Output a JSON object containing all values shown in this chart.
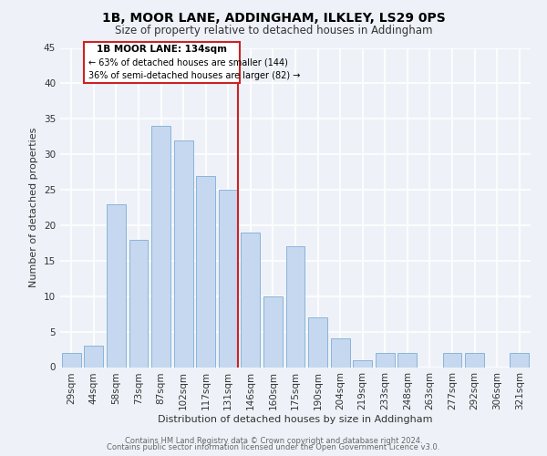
{
  "title": "1B, MOOR LANE, ADDINGHAM, ILKLEY, LS29 0PS",
  "subtitle": "Size of property relative to detached houses in Addingham",
  "xlabel": "Distribution of detached houses by size in Addingham",
  "ylabel": "Number of detached properties",
  "bar_labels": [
    "29sqm",
    "44sqm",
    "58sqm",
    "73sqm",
    "87sqm",
    "102sqm",
    "117sqm",
    "131sqm",
    "146sqm",
    "160sqm",
    "175sqm",
    "190sqm",
    "204sqm",
    "219sqm",
    "233sqm",
    "248sqm",
    "263sqm",
    "277sqm",
    "292sqm",
    "306sqm",
    "321sqm"
  ],
  "bar_values": [
    2,
    3,
    23,
    18,
    34,
    32,
    27,
    25,
    19,
    10,
    17,
    7,
    4,
    1,
    2,
    2,
    0,
    2,
    2,
    0,
    2
  ],
  "bar_color": "#c5d8f0",
  "bar_edge_color": "#8ab4d8",
  "ylim": [
    0,
    45
  ],
  "yticks": [
    0,
    5,
    10,
    15,
    20,
    25,
    30,
    35,
    40,
    45
  ],
  "annotation_title": "1B MOOR LANE: 134sqm",
  "annotation_line1": "← 63% of detached houses are smaller (144)",
  "annotation_line2": "36% of semi-detached houses are larger (82) →",
  "annotation_box_color": "#ffffff",
  "annotation_box_edge_color": "#cc2222",
  "red_line_color": "#cc2222",
  "footer_line1": "Contains HM Land Registry data © Crown copyright and database right 2024.",
  "footer_line2": "Contains public sector information licensed under the Open Government Licence v3.0.",
  "background_color": "#eef2f8",
  "grid_color": "#ffffff",
  "title_fontsize": 10,
  "subtitle_fontsize": 8.5,
  "axis_label_fontsize": 8,
  "tick_fontsize": 7.5,
  "footer_fontsize": 6
}
